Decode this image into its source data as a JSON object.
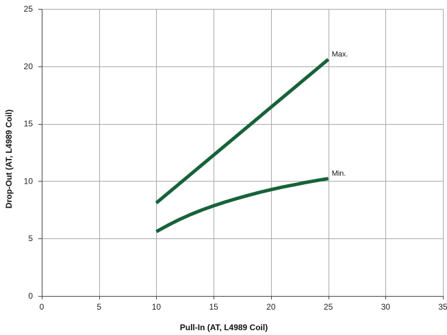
{
  "chart_data": {
    "type": "line",
    "xlabel": "Pull-In (AT, L4989 Coil)",
    "ylabel": "Drop-Out (AT, L4989 Coil)",
    "xlim": [
      0,
      35
    ],
    "ylim": [
      0,
      25
    ],
    "xticks": [
      0,
      5,
      10,
      15,
      20,
      25,
      30,
      35
    ],
    "yticks": [
      0,
      5,
      10,
      15,
      20,
      25
    ],
    "grid": true,
    "line_color": "#17623a",
    "series": [
      {
        "name": "Max.",
        "x": [
          10,
          25
        ],
        "y": [
          8.1,
          20.6
        ]
      },
      {
        "name": "Min.",
        "x": [
          10,
          11,
          12,
          13,
          14,
          15,
          16,
          17,
          18,
          19,
          20,
          21,
          22,
          23,
          24,
          25
        ],
        "y": [
          5.6,
          6.15,
          6.65,
          7.1,
          7.5,
          7.85,
          8.18,
          8.48,
          8.76,
          9.02,
          9.26,
          9.48,
          9.68,
          9.88,
          10.06,
          10.22
        ]
      }
    ]
  }
}
